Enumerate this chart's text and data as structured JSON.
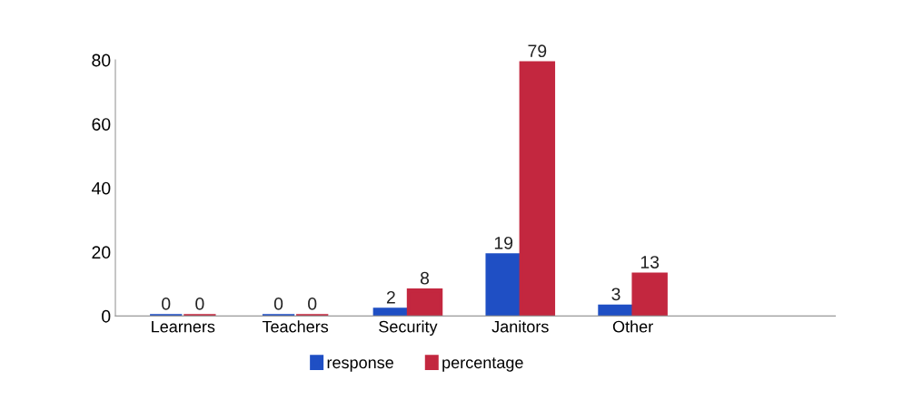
{
  "chart_data": {
    "type": "bar",
    "categories": [
      "Learners",
      "Teachers",
      "Security",
      "Janitors",
      "Other"
    ],
    "series": [
      {
        "name": "response",
        "color": "#1f4fc4",
        "values": [
          0,
          0,
          2,
          19,
          3
        ]
      },
      {
        "name": "percentage",
        "color": "#c3273f",
        "values": [
          0,
          0,
          8,
          79,
          13
        ]
      }
    ],
    "ylim": [
      0,
      80
    ],
    "yticks": [
      0,
      20,
      40,
      60,
      80
    ],
    "data_labels": true,
    "grid": false,
    "legend": "bottom"
  }
}
